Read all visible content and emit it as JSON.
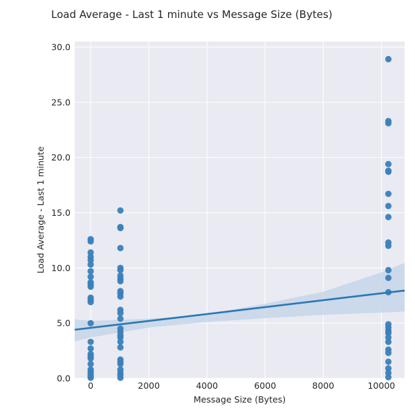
{
  "chart_data": {
    "type": "scatter",
    "title": "Load Average - Last 1 minute vs Message Size (Bytes)",
    "xlabel": "Message Size (Bytes)",
    "ylabel": "Load Average - Last 1 minute",
    "xlim": [
      -550,
      10800
    ],
    "ylim": [
      0,
      30.5
    ],
    "x_ticks": [
      0,
      2000,
      4000,
      6000,
      8000,
      10000
    ],
    "x_tick_labels": [
      "0",
      "2000",
      "4000",
      "6000",
      "8000",
      "10000"
    ],
    "y_ticks": [
      0,
      5,
      10,
      15,
      20,
      25,
      30
    ],
    "y_tick_labels": [
      "0.0",
      "5.0",
      "10.0",
      "15.0",
      "20.0",
      "25.0",
      "30.0"
    ],
    "grid": true,
    "colors": {
      "point": "#3a80b9",
      "line": "#2a77b4",
      "band": "#c5d6e9",
      "background": "#eaeaf2"
    },
    "regression": {
      "x": [
        -550,
        10800
      ],
      "y": [
        4.4,
        7.95
      ]
    },
    "confidence_band": {
      "x": [
        -550,
        0,
        2000,
        4000,
        6000,
        8000,
        10000,
        10800
      ],
      "lower": [
        3.35,
        3.7,
        4.6,
        5.1,
        5.45,
        5.75,
        5.95,
        6.05
      ],
      "upper": [
        5.35,
        5.2,
        5.4,
        5.8,
        6.75,
        7.85,
        9.6,
        10.45
      ]
    },
    "series": [
      {
        "values": [
          {
            "x": 0,
            "y": 12.6
          },
          {
            "x": 0,
            "y": 12.4
          },
          {
            "x": 0,
            "y": 11.4
          },
          {
            "x": 0,
            "y": 11.0
          },
          {
            "x": 0,
            "y": 10.7
          },
          {
            "x": 0,
            "y": 10.3
          },
          {
            "x": 0,
            "y": 9.7
          },
          {
            "x": 0,
            "y": 9.2
          },
          {
            "x": 0,
            "y": 8.7
          },
          {
            "x": 0,
            "y": 8.5
          },
          {
            "x": 0,
            "y": 8.3
          },
          {
            "x": 0,
            "y": 7.3
          },
          {
            "x": 0,
            "y": 7.1
          },
          {
            "x": 0,
            "y": 6.9
          },
          {
            "x": 0,
            "y": 5.0
          },
          {
            "x": 0,
            "y": 3.3
          },
          {
            "x": 0,
            "y": 2.7
          },
          {
            "x": 0,
            "y": 2.2
          },
          {
            "x": 0,
            "y": 2.0
          },
          {
            "x": 0,
            "y": 1.8
          },
          {
            "x": 0,
            "y": 1.3
          },
          {
            "x": 0,
            "y": 0.8
          },
          {
            "x": 0,
            "y": 0.6
          },
          {
            "x": 0,
            "y": 0.4
          },
          {
            "x": 0,
            "y": 0.2
          },
          {
            "x": 0,
            "y": 0.05
          },
          {
            "x": 1024,
            "y": 15.2
          },
          {
            "x": 1024,
            "y": 13.7
          },
          {
            "x": 1024,
            "y": 13.6
          },
          {
            "x": 1024,
            "y": 11.8
          },
          {
            "x": 1024,
            "y": 10.0
          },
          {
            "x": 1024,
            "y": 9.8
          },
          {
            "x": 1024,
            "y": 9.3
          },
          {
            "x": 1024,
            "y": 9.0
          },
          {
            "x": 1024,
            "y": 8.8
          },
          {
            "x": 1024,
            "y": 7.9
          },
          {
            "x": 1024,
            "y": 7.7
          },
          {
            "x": 1024,
            "y": 7.4
          },
          {
            "x": 1024,
            "y": 6.2
          },
          {
            "x": 1024,
            "y": 5.9
          },
          {
            "x": 1024,
            "y": 5.4
          },
          {
            "x": 1024,
            "y": 4.5
          },
          {
            "x": 1024,
            "y": 4.2
          },
          {
            "x": 1024,
            "y": 3.9
          },
          {
            "x": 1024,
            "y": 3.7
          },
          {
            "x": 1024,
            "y": 3.3
          },
          {
            "x": 1024,
            "y": 2.8
          },
          {
            "x": 1024,
            "y": 1.7
          },
          {
            "x": 1024,
            "y": 1.5
          },
          {
            "x": 1024,
            "y": 1.3
          },
          {
            "x": 1024,
            "y": 0.8
          },
          {
            "x": 1024,
            "y": 0.5
          },
          {
            "x": 1024,
            "y": 0.3
          },
          {
            "x": 1024,
            "y": 0.05
          },
          {
            "x": 10240,
            "y": 28.9
          },
          {
            "x": 10240,
            "y": 23.3
          },
          {
            "x": 10240,
            "y": 23.1
          },
          {
            "x": 10240,
            "y": 19.4
          },
          {
            "x": 10240,
            "y": 18.8
          },
          {
            "x": 10240,
            "y": 18.7
          },
          {
            "x": 10240,
            "y": 16.7
          },
          {
            "x": 10240,
            "y": 15.6
          },
          {
            "x": 10240,
            "y": 14.6
          },
          {
            "x": 10240,
            "y": 12.3
          },
          {
            "x": 10240,
            "y": 12.0
          },
          {
            "x": 10240,
            "y": 9.8
          },
          {
            "x": 10240,
            "y": 9.1
          },
          {
            "x": 10240,
            "y": 7.8
          },
          {
            "x": 10240,
            "y": 4.9
          },
          {
            "x": 10240,
            "y": 4.6
          },
          {
            "x": 10240,
            "y": 4.3
          },
          {
            "x": 10240,
            "y": 4.1
          },
          {
            "x": 10240,
            "y": 3.7
          },
          {
            "x": 10240,
            "y": 3.3
          },
          {
            "x": 10240,
            "y": 2.6
          },
          {
            "x": 10240,
            "y": 2.3
          },
          {
            "x": 10240,
            "y": 1.5
          },
          {
            "x": 10240,
            "y": 0.9
          },
          {
            "x": 10240,
            "y": 0.5
          },
          {
            "x": 10240,
            "y": 0.1
          }
        ]
      }
    ]
  }
}
